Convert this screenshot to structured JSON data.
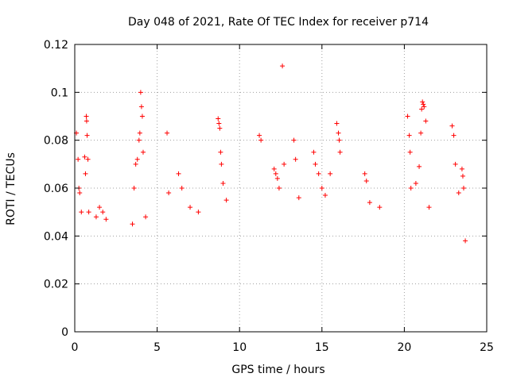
{
  "chart_data": {
    "type": "scatter",
    "title": "Day 048 of 2021, Rate Of TEC Index for receiver p714",
    "xlabel": "GPS time / hours",
    "ylabel": "ROTI / TECUs",
    "xlim": [
      0,
      25
    ],
    "ylim": [
      0,
      0.12
    ],
    "x_ticks": [
      0,
      5,
      10,
      15,
      20,
      25
    ],
    "x_tick_labels": [
      "0",
      "5",
      "10",
      "15",
      "20",
      "25"
    ],
    "y_ticks": [
      0,
      0.02,
      0.04,
      0.06,
      0.08,
      0.1,
      0.12
    ],
    "y_tick_labels": [
      "0",
      "0.02",
      "0.04",
      "0.06",
      "0.08",
      "0.1",
      "0.12"
    ],
    "grid": true,
    "legend": "none",
    "marker": "plus",
    "color": "#ff0000",
    "series": [
      {
        "points": [
          [
            0.1,
            0.083
          ],
          [
            0.2,
            0.072
          ],
          [
            0.25,
            0.06
          ],
          [
            0.3,
            0.058
          ],
          [
            0.4,
            0.05
          ],
          [
            0.6,
            0.073
          ],
          [
            0.65,
            0.066
          ],
          [
            0.7,
            0.09
          ],
          [
            0.72,
            0.088
          ],
          [
            0.75,
            0.082
          ],
          [
            0.8,
            0.072
          ],
          [
            0.85,
            0.05
          ],
          [
            1.3,
            0.048
          ],
          [
            1.5,
            0.052
          ],
          [
            1.7,
            0.05
          ],
          [
            1.9,
            0.047
          ],
          [
            3.5,
            0.045
          ],
          [
            3.6,
            0.06
          ],
          [
            3.7,
            0.07
          ],
          [
            3.8,
            0.072
          ],
          [
            3.9,
            0.08
          ],
          [
            3.95,
            0.083
          ],
          [
            4.0,
            0.1
          ],
          [
            4.05,
            0.094
          ],
          [
            4.1,
            0.09
          ],
          [
            4.15,
            0.075
          ],
          [
            4.3,
            0.048
          ],
          [
            5.6,
            0.083
          ],
          [
            5.7,
            0.058
          ],
          [
            6.3,
            0.066
          ],
          [
            6.5,
            0.06
          ],
          [
            7.0,
            0.052
          ],
          [
            7.5,
            0.05
          ],
          [
            8.7,
            0.089
          ],
          [
            8.75,
            0.087
          ],
          [
            8.8,
            0.085
          ],
          [
            8.85,
            0.075
          ],
          [
            8.9,
            0.07
          ],
          [
            9.0,
            0.062
          ],
          [
            9.2,
            0.055
          ],
          [
            11.2,
            0.082
          ],
          [
            11.3,
            0.08
          ],
          [
            12.1,
            0.068
          ],
          [
            12.2,
            0.066
          ],
          [
            12.3,
            0.064
          ],
          [
            12.4,
            0.06
          ],
          [
            12.6,
            0.111
          ],
          [
            12.7,
            0.07
          ],
          [
            13.3,
            0.08
          ],
          [
            13.4,
            0.072
          ],
          [
            13.6,
            0.056
          ],
          [
            14.5,
            0.075
          ],
          [
            14.6,
            0.07
          ],
          [
            14.8,
            0.066
          ],
          [
            15.0,
            0.06
          ],
          [
            15.2,
            0.057
          ],
          [
            15.5,
            0.066
          ],
          [
            15.9,
            0.087
          ],
          [
            16.0,
            0.083
          ],
          [
            16.05,
            0.08
          ],
          [
            16.1,
            0.075
          ],
          [
            17.6,
            0.066
          ],
          [
            17.7,
            0.063
          ],
          [
            17.9,
            0.054
          ],
          [
            18.5,
            0.052
          ],
          [
            20.2,
            0.09
          ],
          [
            20.3,
            0.082
          ],
          [
            20.35,
            0.075
          ],
          [
            20.4,
            0.06
          ],
          [
            20.7,
            0.062
          ],
          [
            20.9,
            0.069
          ],
          [
            21.0,
            0.083
          ],
          [
            21.05,
            0.093
          ],
          [
            21.1,
            0.096
          ],
          [
            21.15,
            0.095
          ],
          [
            21.2,
            0.094
          ],
          [
            21.3,
            0.088
          ],
          [
            21.5,
            0.052
          ],
          [
            22.9,
            0.086
          ],
          [
            23.0,
            0.082
          ],
          [
            23.1,
            0.07
          ],
          [
            23.3,
            0.058
          ],
          [
            23.5,
            0.068
          ],
          [
            23.55,
            0.065
          ],
          [
            23.6,
            0.06
          ],
          [
            23.7,
            0.038
          ]
        ]
      }
    ]
  }
}
